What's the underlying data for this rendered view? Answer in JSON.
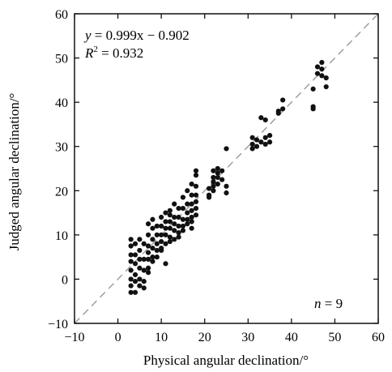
{
  "chart_data": {
    "type": "scatter",
    "title": "",
    "xlabel": "Physical angular declination/°",
    "ylabel": "Judged angular declination/°",
    "xlim": [
      -10,
      60
    ],
    "ylim": [
      -10,
      60
    ],
    "xticks": [
      "−10",
      "0",
      "10",
      "20",
      "30",
      "40",
      "50",
      "60"
    ],
    "yticks": [
      "−10",
      "0",
      "10",
      "20",
      "30",
      "40",
      "50",
      "60"
    ],
    "grid": false,
    "reference_line": {
      "style": "dashed",
      "from": [
        -10,
        -10
      ],
      "to": [
        60,
        60
      ],
      "color": "#999999"
    },
    "annotations": {
      "equation": {
        "lhs": "y",
        "rhs": " = 0.999x − 0.902"
      },
      "r_squared": {
        "symbol": "R",
        "exponent": "2",
        "value": " = 0.932"
      },
      "n": {
        "symbol": "n",
        "value": " = 9"
      }
    },
    "point_color": "#111111",
    "points": [
      [
        3,
        9
      ],
      [
        3,
        7.5
      ],
      [
        3,
        5.5
      ],
      [
        3,
        4
      ],
      [
        3,
        2
      ],
      [
        3,
        0
      ],
      [
        3,
        -1.5
      ],
      [
        3,
        -3
      ],
      [
        4,
        8
      ],
      [
        4,
        5.5
      ],
      [
        4,
        3.5
      ],
      [
        4,
        1
      ],
      [
        4,
        -0.5
      ],
      [
        4,
        -3
      ],
      [
        5,
        6.5
      ],
      [
        5,
        4.5
      ],
      [
        5,
        2.5
      ],
      [
        5,
        0
      ],
      [
        5,
        -1.5
      ],
      [
        5,
        9
      ],
      [
        6,
        8
      ],
      [
        6,
        4.5
      ],
      [
        6,
        2
      ],
      [
        6,
        -0.5
      ],
      [
        6,
        -2
      ],
      [
        7,
        12.5
      ],
      [
        7,
        10
      ],
      [
        7,
        7.5
      ],
      [
        7,
        6
      ],
      [
        7,
        4.5
      ],
      [
        7,
        2.5
      ],
      [
        7,
        1.5
      ],
      [
        8,
        13.5
      ],
      [
        8,
        11.5
      ],
      [
        8,
        9
      ],
      [
        8,
        7
      ],
      [
        8,
        5
      ],
      [
        8,
        4
      ],
      [
        9,
        12
      ],
      [
        9,
        10
      ],
      [
        9,
        8
      ],
      [
        9,
        6.5
      ],
      [
        9,
        5
      ],
      [
        10,
        14
      ],
      [
        10,
        12
      ],
      [
        10,
        10
      ],
      [
        10,
        8.5
      ],
      [
        10,
        7
      ],
      [
        10,
        6.5
      ],
      [
        11,
        15
      ],
      [
        11,
        13
      ],
      [
        11,
        11.5
      ],
      [
        11,
        10
      ],
      [
        11,
        8
      ],
      [
        11,
        3.5
      ],
      [
        12,
        14.5
      ],
      [
        12,
        13
      ],
      [
        12,
        11.5
      ],
      [
        12,
        9.5
      ],
      [
        12,
        8.5
      ],
      [
        12,
        15.5
      ],
      [
        13,
        17
      ],
      [
        13,
        14
      ],
      [
        13,
        12.5
      ],
      [
        13,
        11
      ],
      [
        13,
        9
      ],
      [
        14,
        16
      ],
      [
        14,
        14
      ],
      [
        14,
        12
      ],
      [
        14,
        10.5
      ],
      [
        14,
        9.5
      ],
      [
        15,
        18.5
      ],
      [
        15,
        16
      ],
      [
        15,
        13.5
      ],
      [
        15,
        12
      ],
      [
        15,
        11
      ],
      [
        16,
        20
      ],
      [
        16,
        17
      ],
      [
        16,
        15
      ],
      [
        16,
        13.5
      ],
      [
        16,
        12.5
      ],
      [
        17,
        21.5
      ],
      [
        17,
        19
      ],
      [
        17,
        17
      ],
      [
        17,
        15.5
      ],
      [
        17,
        14
      ],
      [
        17,
        13
      ],
      [
        17,
        11.5
      ],
      [
        18,
        24.5
      ],
      [
        18,
        23.5
      ],
      [
        18,
        21
      ],
      [
        18,
        19
      ],
      [
        18,
        17.5
      ],
      [
        18,
        16
      ],
      [
        18,
        14.5
      ],
      [
        21,
        20.5
      ],
      [
        21,
        19
      ],
      [
        21,
        18.5
      ],
      [
        22,
        24.5
      ],
      [
        22,
        23
      ],
      [
        22,
        22
      ],
      [
        22,
        21
      ],
      [
        22,
        20
      ],
      [
        23,
        25
      ],
      [
        23,
        24
      ],
      [
        23,
        23
      ],
      [
        23,
        21.5
      ],
      [
        24,
        24.5
      ],
      [
        24,
        22.5
      ],
      [
        25,
        29.5
      ],
      [
        25,
        21
      ],
      [
        25,
        19.5
      ],
      [
        31,
        32
      ],
      [
        31,
        30.5
      ],
      [
        31,
        29.5
      ],
      [
        32,
        31.5
      ],
      [
        32,
        30
      ],
      [
        33,
        36.5
      ],
      [
        33,
        31
      ],
      [
        34,
        36
      ],
      [
        34,
        32
      ],
      [
        34,
        30.5
      ],
      [
        35,
        32.5
      ],
      [
        35,
        31
      ],
      [
        37,
        38
      ],
      [
        37,
        37.5
      ],
      [
        38,
        40.5
      ],
      [
        38,
        38.5
      ],
      [
        45,
        43
      ],
      [
        45,
        39
      ],
      [
        45,
        38.5
      ],
      [
        46,
        48
      ],
      [
        46,
        46.5
      ],
      [
        47,
        49
      ],
      [
        47,
        47.5
      ],
      [
        47,
        46
      ],
      [
        48,
        45.5
      ],
      [
        48,
        43.5
      ]
    ]
  }
}
